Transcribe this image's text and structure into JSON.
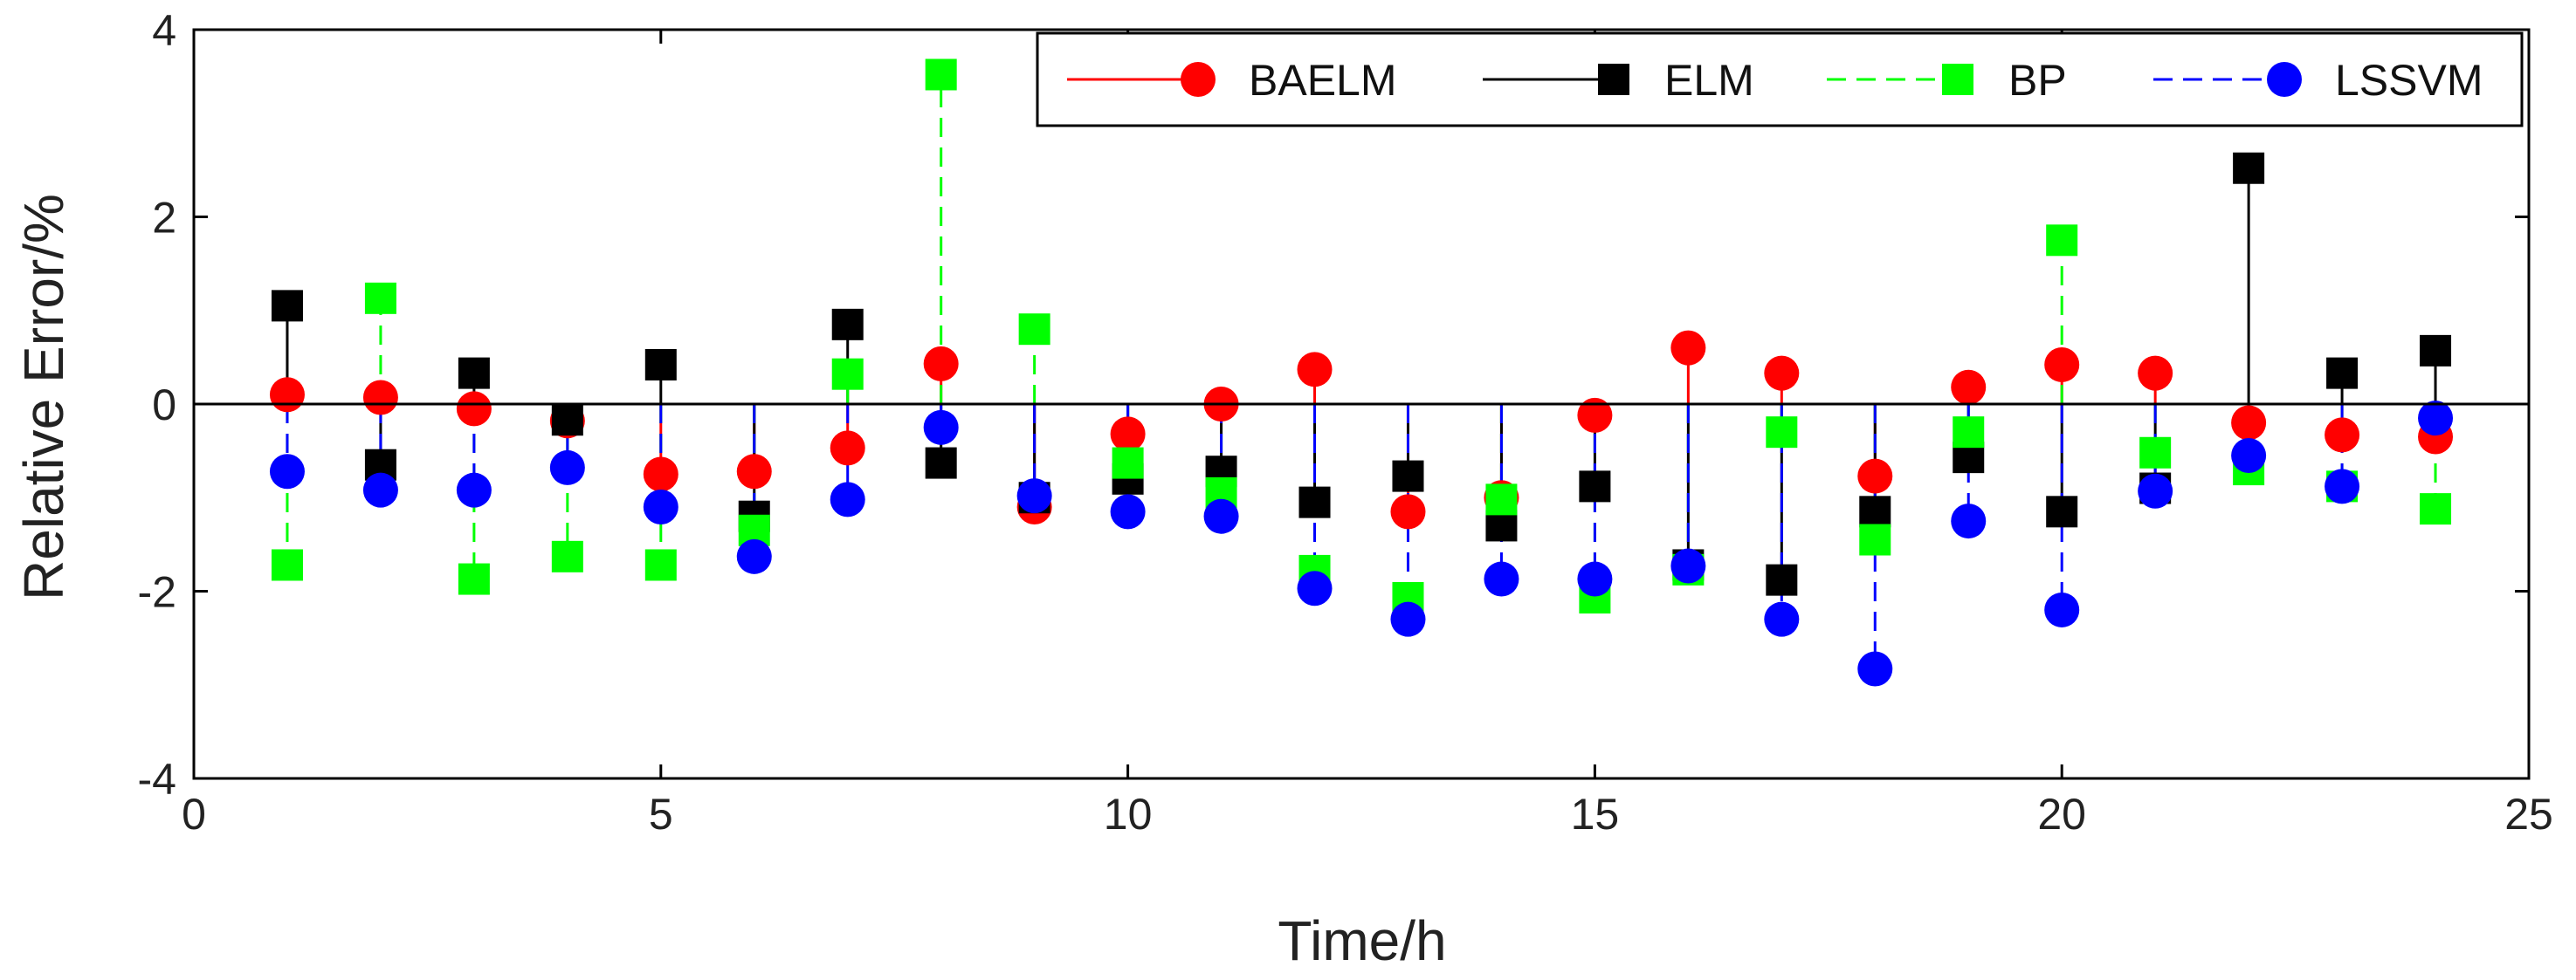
{
  "chart_data": {
    "type": "stem",
    "title": "",
    "xlabel": "Time/h",
    "ylabel": "Relative Error/%",
    "xlim": [
      0,
      25
    ],
    "ylim": [
      -4,
      4
    ],
    "xticks": [
      0,
      5,
      10,
      15,
      20,
      25
    ],
    "yticks": [
      -4,
      -2,
      0,
      2,
      4
    ],
    "xtick_labels": [
      "0",
      "5",
      "10",
      "15",
      "20",
      "25"
    ],
    "ytick_labels": [
      "-4",
      "-2",
      "0",
      "2",
      "4"
    ],
    "grid": false,
    "legend_position": "top-right",
    "x": [
      1,
      2,
      3,
      4,
      5,
      6,
      7,
      8,
      9,
      10,
      11,
      12,
      13,
      14,
      15,
      16,
      17,
      18,
      19,
      20,
      21,
      22,
      23,
      24
    ],
    "series": [
      {
        "name": "BAELM",
        "color": "#ff0000",
        "line": "solid",
        "marker": "circle",
        "values": [
          0.1,
          0.07,
          -0.05,
          -0.18,
          -0.75,
          -0.72,
          -0.47,
          0.43,
          -1.1,
          -0.32,
          0.0,
          0.37,
          -1.15,
          -1.0,
          -0.12,
          0.6,
          0.33,
          -0.77,
          0.18,
          0.42,
          0.33,
          -0.2,
          -0.33,
          -0.35
        ]
      },
      {
        "name": "ELM",
        "color": "#000000",
        "line": "solid",
        "marker": "square",
        "values": [
          1.05,
          -0.65,
          0.33,
          -0.17,
          0.42,
          -1.2,
          0.85,
          -0.63,
          -1.0,
          -0.8,
          -0.72,
          -1.05,
          -0.77,
          -1.3,
          -0.88,
          -1.72,
          -1.88,
          -1.15,
          -0.57,
          -1.15,
          -0.9,
          2.52,
          0.33,
          0.57
        ]
      },
      {
        "name": "BP",
        "color": "#00ff00",
        "line": "dashed",
        "marker": "square",
        "values": [
          -1.72,
          1.13,
          -1.87,
          -1.63,
          -1.72,
          -1.35,
          0.32,
          3.52,
          0.8,
          -0.63,
          -0.95,
          -1.78,
          -2.07,
          -1.02,
          -2.07,
          -1.77,
          -0.3,
          -1.45,
          -0.3,
          1.75,
          -0.52,
          -0.7,
          -0.88,
          -1.12
        ]
      },
      {
        "name": "LSSVM",
        "color": "#0000ff",
        "line": "dashed",
        "marker": "circle",
        "values": [
          -0.72,
          -0.92,
          -0.92,
          -0.68,
          -1.1,
          -1.63,
          -1.02,
          -0.25,
          -0.98,
          -1.15,
          -1.2,
          -1.97,
          -2.3,
          -1.87,
          -1.87,
          -1.73,
          -2.3,
          -2.83,
          -1.25,
          -2.2,
          -0.93,
          -0.55,
          -0.88,
          -0.15
        ]
      }
    ]
  }
}
